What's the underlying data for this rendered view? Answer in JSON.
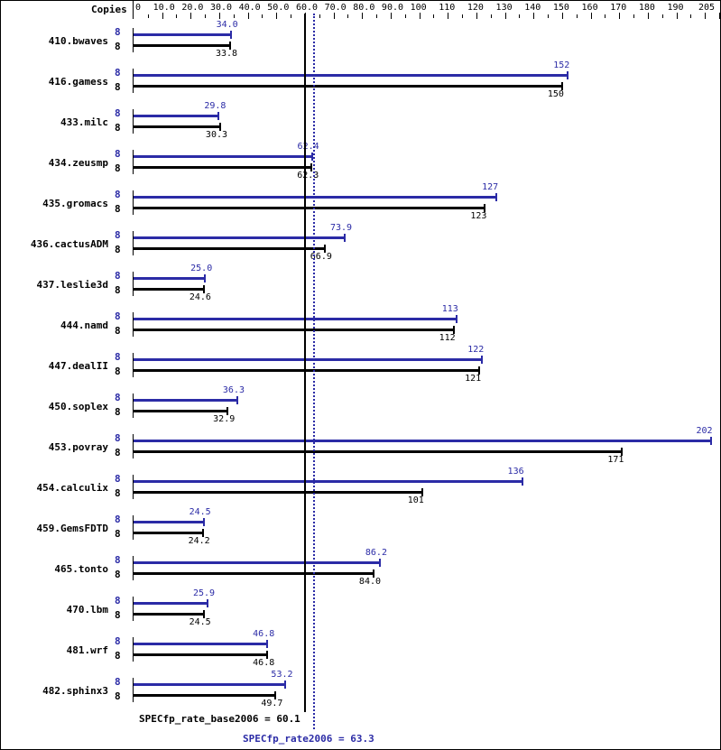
{
  "colors": {
    "peak": "#2b2ba6",
    "base": "#000000"
  },
  "header": {
    "copies_label": "Copies"
  },
  "chart_data": {
    "type": "bar",
    "orientation": "horizontal",
    "title": "",
    "xlabel": "",
    "ylabel": "",
    "xlim": [
      0,
      205
    ],
    "x_tick_labels": [
      "0",
      "10.0",
      "20.0",
      "30.0",
      "40.0",
      "50.0",
      "60.0",
      "70.0",
      "80.0",
      "90.0",
      "100",
      "110",
      "120",
      "130",
      "140",
      "150",
      "160",
      "170",
      "180",
      "190",
      "205"
    ],
    "categories": [
      "410.bwaves",
      "416.gamess",
      "433.milc",
      "434.zeusmp",
      "435.gromacs",
      "436.cactusADM",
      "437.leslie3d",
      "444.namd",
      "447.dealII",
      "450.soplex",
      "453.povray",
      "454.calculix",
      "459.GemsFDTD",
      "465.tonto",
      "470.lbm",
      "481.wrf",
      "482.sphinx3"
    ],
    "series": [
      {
        "name": "Peak",
        "color": "#2b2ba6",
        "copies": [
          8,
          8,
          8,
          8,
          8,
          8,
          8,
          8,
          8,
          8,
          8,
          8,
          8,
          8,
          8,
          8,
          8
        ],
        "values": [
          34.0,
          152,
          29.8,
          62.4,
          127,
          73.9,
          25.0,
          113,
          122,
          36.3,
          202,
          136,
          24.5,
          86.2,
          25.9,
          46.8,
          53.2
        ],
        "labels": [
          "34.0",
          "152",
          "29.8",
          "62.4",
          "127",
          "73.9",
          "25.0",
          "113",
          "122",
          "36.3",
          "202",
          "136",
          "24.5",
          "86.2",
          "25.9",
          "46.8",
          "53.2"
        ]
      },
      {
        "name": "Base",
        "color": "#000000",
        "copies": [
          8,
          8,
          8,
          8,
          8,
          8,
          8,
          8,
          8,
          8,
          8,
          8,
          8,
          8,
          8,
          8,
          8
        ],
        "values": [
          33.8,
          150,
          30.3,
          62.3,
          123,
          66.9,
          24.6,
          112,
          121,
          32.9,
          171,
          101,
          24.2,
          84.0,
          24.5,
          46.8,
          49.7
        ],
        "labels": [
          "33.8",
          "150",
          "30.3",
          "62.3",
          "123",
          "66.9",
          "24.6",
          "112",
          "121",
          "32.9",
          "171",
          "101",
          "24.2",
          "84.0",
          "24.5",
          "46.8",
          "49.7"
        ]
      }
    ],
    "reference_lines": [
      {
        "name": "SPECfp_rate_base2006",
        "value": 60.1,
        "style": "solid",
        "color": "#000000"
      },
      {
        "name": "SPECfp_rate2006",
        "value": 63.3,
        "style": "dotted",
        "color": "#2b2ba6"
      }
    ],
    "legend": "none"
  },
  "summary": {
    "base_text": "SPECfp_rate_base2006 = 60.1",
    "peak_text": "SPECfp_rate2006 = 63.3"
  }
}
